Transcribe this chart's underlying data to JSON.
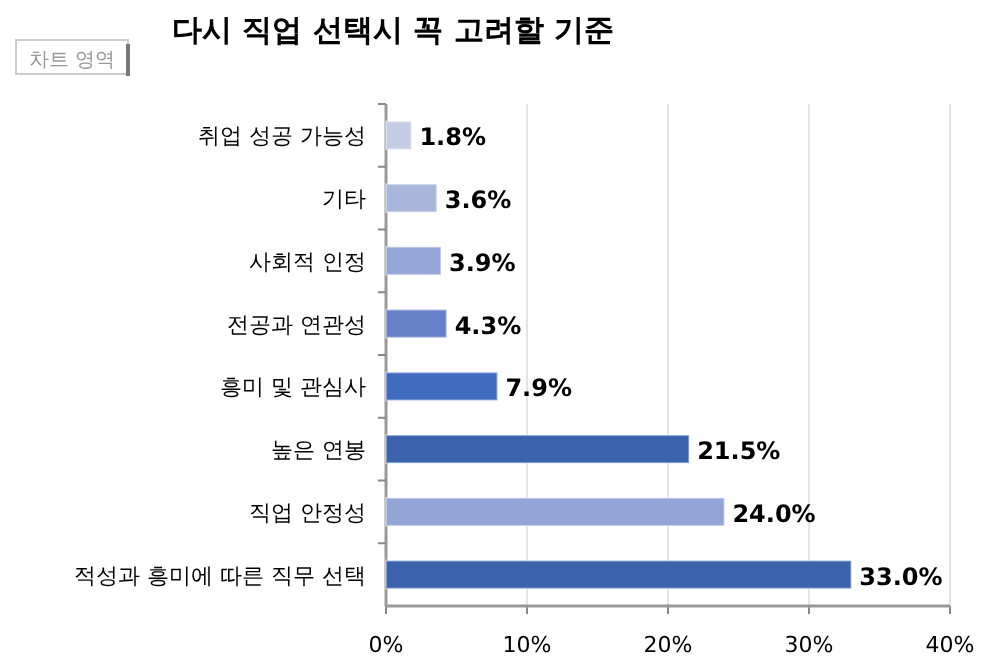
{
  "chart_data": {
    "type": "bar",
    "orientation": "horizontal",
    "title": "다시 직업 선택시 꼭 고려할 기준",
    "annotations": [
      "차트 영역"
    ],
    "categories": [
      "취업 성공 가능성",
      "기타",
      "사회적 인정",
      "전공과 연관성",
      "흥미 및 관심사",
      "높은 연봉",
      "직업 안정성",
      "적성과 흥미에 따른 직무 선택"
    ],
    "values": [
      1.8,
      3.6,
      3.9,
      4.3,
      7.9,
      21.5,
      24.0,
      33.0
    ],
    "colors": [
      "#c5cce6",
      "#a9b6dc",
      "#95a7d8",
      "#6681c8",
      "#3f6cbf",
      "#3a62ad",
      "#93a5d7",
      "#3a62ad"
    ],
    "xlim": [
      0,
      40
    ],
    "xticks": [
      {
        "value": 0,
        "label": "0%"
      },
      {
        "value": 10,
        "label": "10%"
      },
      {
        "value": 20,
        "label": "20%"
      },
      {
        "value": 30,
        "label": "30%"
      },
      {
        "value": 40,
        "label": "40%"
      }
    ],
    "value_labels": [
      "1.8%",
      "3.6%",
      "3.9%",
      "4.3%",
      "7.9%",
      "21.5%",
      "24.0%",
      "33.0%"
    ],
    "grid": "x"
  }
}
